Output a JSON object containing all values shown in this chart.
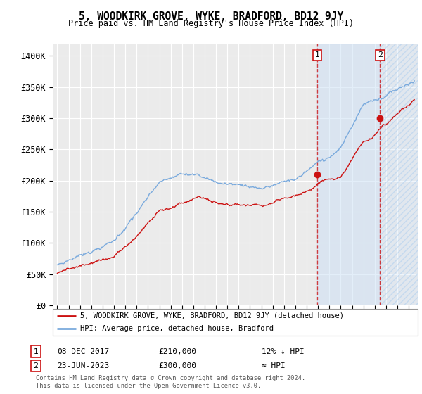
{
  "title": "5, WOODKIRK GROVE, WYKE, BRADFORD, BD12 9JY",
  "subtitle": "Price paid vs. HM Land Registry's House Price Index (HPI)",
  "ylim": [
    0,
    420000
  ],
  "yticks": [
    0,
    50000,
    100000,
    150000,
    200000,
    250000,
    300000,
    350000,
    400000
  ],
  "ytick_labels": [
    "£0",
    "£50K",
    "£100K",
    "£150K",
    "£200K",
    "£250K",
    "£300K",
    "£350K",
    "£400K"
  ],
  "xlim_start": 1994.6,
  "xlim_end": 2026.8,
  "background_color": "#ffffff",
  "plot_bg_color": "#ebebeb",
  "grid_color": "#ffffff",
  "hpi_color": "#7aaadd",
  "property_color": "#cc1111",
  "sale1_date_x": 2017.92,
  "sale1_price": 210000,
  "sale1_label": "08-DEC-2017",
  "sale1_price_str": "£210,000",
  "sale1_hpi_rel": "12% ↓ HPI",
  "sale2_date_x": 2023.48,
  "sale2_price": 300000,
  "sale2_label": "23-JUN-2023",
  "sale2_price_str": "£300,000",
  "sale2_hpi_rel": "≈ HPI",
  "legend_line1": "5, WOODKIRK GROVE, WYKE, BRADFORD, BD12 9JY (detached house)",
  "legend_line2": "HPI: Average price, detached house, Bradford",
  "footer1": "Contains HM Land Registry data © Crown copyright and database right 2024.",
  "footer2": "This data is licensed under the Open Government Licence v3.0.",
  "xtick_years": [
    1995,
    1996,
    1997,
    1998,
    1999,
    2000,
    2001,
    2002,
    2003,
    2004,
    2005,
    2006,
    2007,
    2008,
    2009,
    2010,
    2011,
    2012,
    2013,
    2014,
    2015,
    2016,
    2017,
    2018,
    2019,
    2020,
    2021,
    2022,
    2023,
    2024,
    2025,
    2026
  ],
  "shade_between_color": "#cce0f5",
  "shade_after_color": "#ddeeff"
}
